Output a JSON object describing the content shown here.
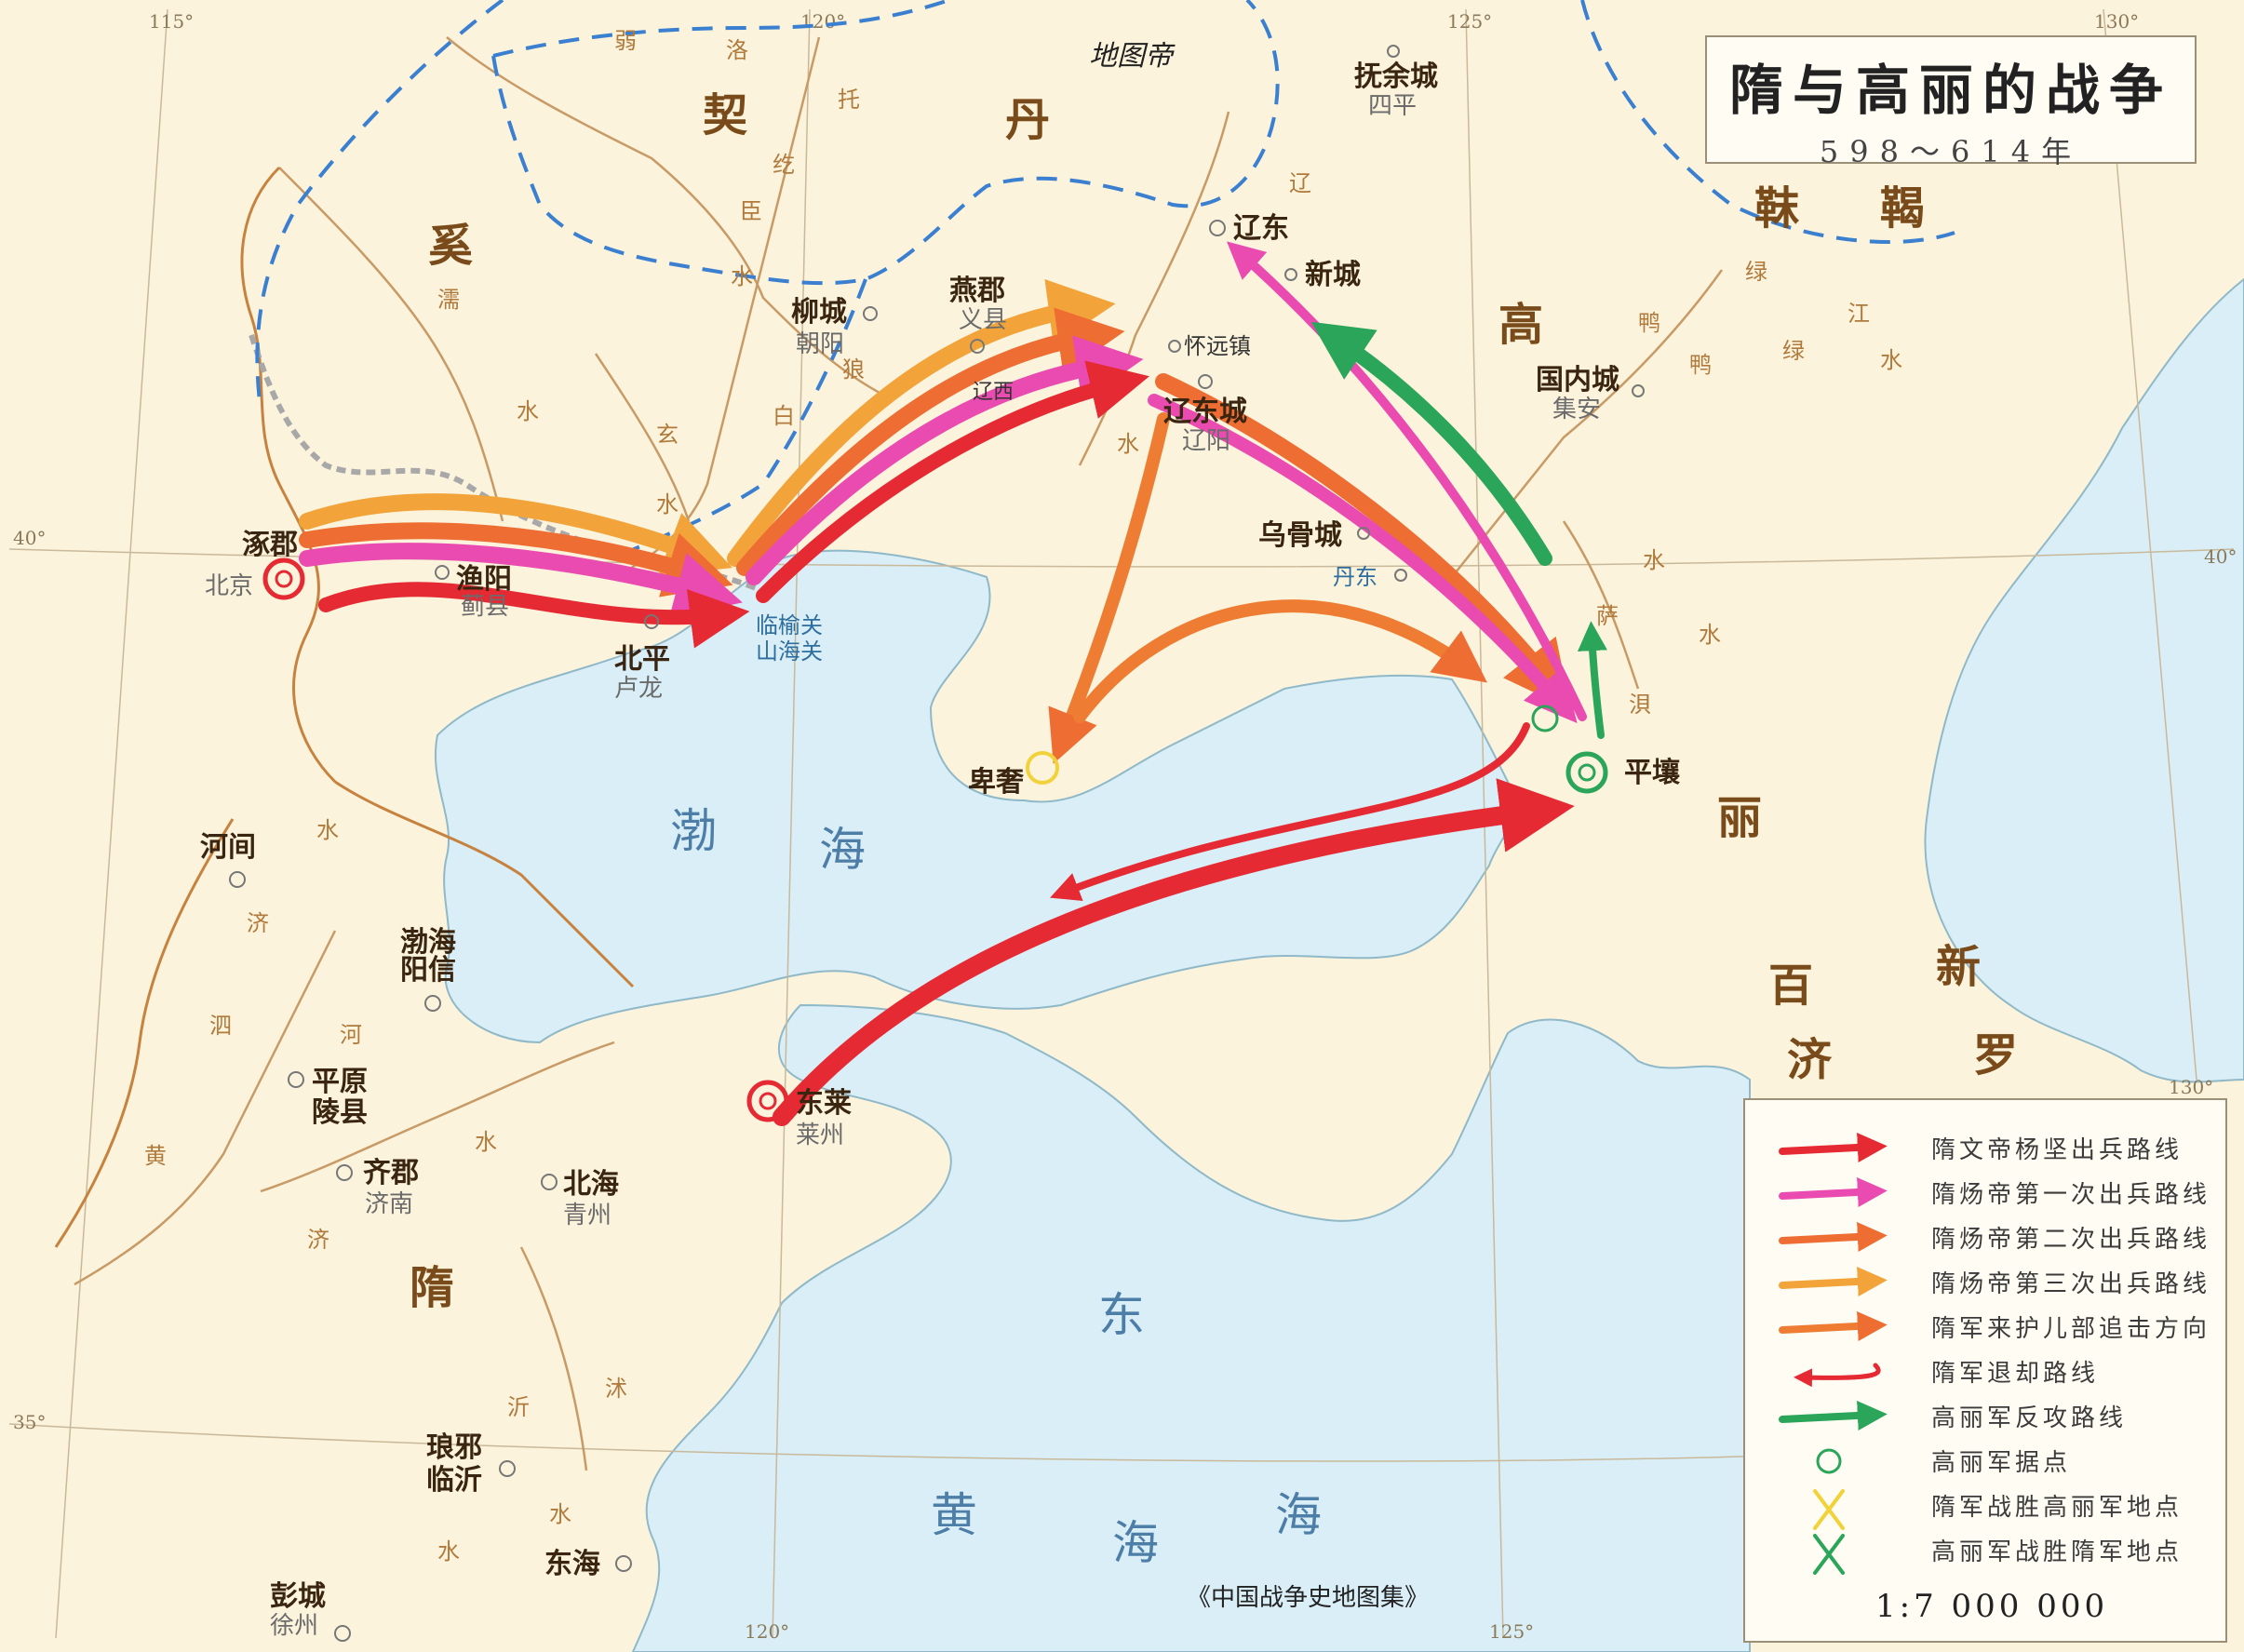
{
  "title": {
    "main": "隋与高丽的战争",
    "sub": "598～614年"
  },
  "watermark": "地图帝",
  "source_note": "《中国战争史地图集》",
  "regions": {
    "khitan": [
      "契",
      "丹"
    ],
    "xi": "奚",
    "mohe": [
      "靺",
      "鞨"
    ],
    "goguryeo": [
      "高",
      "丽"
    ],
    "baekje": [
      "百",
      "济"
    ],
    "silla": [
      "新",
      "罗"
    ],
    "sui": "隋"
  },
  "seas": {
    "bohai": [
      "渤",
      "海"
    ],
    "east": "东",
    "yellow": [
      "黄",
      "海",
      "海"
    ]
  },
  "cities": {
    "zhuojun": {
      "name": "涿郡",
      "modern": "北京"
    },
    "yuyang": {
      "name": "渔阳",
      "modern": "蓟县"
    },
    "beiping": {
      "name": "北平",
      "modern": "卢龙"
    },
    "linyu": {
      "name": "临榆关",
      "modern": "山海关"
    },
    "liucheng": {
      "name": "柳城",
      "modern": "朝阳"
    },
    "yanjun": {
      "name": "燕郡",
      "modern": "义县"
    },
    "liaoxi": {
      "name": "辽西"
    },
    "huaiyuan": {
      "name": "怀远镇"
    },
    "liaodong_city": {
      "name": "辽东城",
      "modern": "辽阳"
    },
    "liaodong": {
      "name": "辽东"
    },
    "xincheng": {
      "name": "新城"
    },
    "fuyu": {
      "name": "抚余城",
      "modern": "四平"
    },
    "guonei": {
      "name": "国内城",
      "modern": "集安"
    },
    "wugu": {
      "name": "乌骨城",
      "modern": "丹东"
    },
    "dandong": {
      "name": "丹东"
    },
    "beishe": {
      "name": "卑奢"
    },
    "pyongyang": {
      "name": "平壤"
    },
    "hejian": {
      "name": "河间"
    },
    "bohai_jun": {
      "name": "渤海",
      "modern": "阳信"
    },
    "pingyuan": {
      "name": "平原",
      "modern": "陵县"
    },
    "qijun": {
      "name": "齐郡",
      "modern": "济南"
    },
    "beihai": {
      "name": "北海",
      "modern": "青州"
    },
    "donglai": {
      "name": "东莱",
      "modern": "莱州"
    },
    "langya": {
      "name": "琅邪",
      "modern": "临沂"
    },
    "donghai": {
      "name": "东海"
    },
    "pengcheng": {
      "name": "彭城",
      "modern": "徐州"
    }
  },
  "rivers": {
    "luo": [
      "洛"
    ],
    "tuo": [
      "托",
      "纥",
      "臣",
      "水"
    ],
    "ru": [
      "濡",
      "水"
    ],
    "xuan": [
      "玄",
      "水"
    ],
    "bai": [
      "白",
      "狼",
      "水"
    ],
    "liao": [
      "辽",
      "水"
    ],
    "yalu": [
      "鸭",
      "绿",
      "江",
      "水"
    ],
    "he": [
      "河"
    ],
    "ji": [
      "济"
    ],
    "yi": [
      "沂",
      "沭",
      "水"
    ],
    "huang": [
      "黄"
    ],
    "misc": [
      "水",
      "水",
      "浿",
      "弱",
      "萨",
      "泗"
    ]
  },
  "degrees": {
    "lon": [
      "115°",
      "120°",
      "125°",
      "130°"
    ],
    "lat": [
      "40°",
      "35°"
    ],
    "lon_bottom": [
      "120°",
      "125°"
    ]
  },
  "legend": {
    "items": [
      {
        "label": "隋文帝杨坚出兵路线",
        "color": "#e52a33"
      },
      {
        "label": "隋炀帝第一次出兵路线",
        "color": "#e94bb0"
      },
      {
        "label": "隋炀帝第二次出兵路线",
        "color": "#ee6d33"
      },
      {
        "label": "隋炀帝第三次出兵路线",
        "color": "#f2a43a"
      },
      {
        "label": "隋军来护儿部追击方向",
        "color": "#ee7d33"
      },
      {
        "label": "隋军退却路线",
        "color": "#e52a33"
      },
      {
        "label": "高丽军反攻路线",
        "color": "#2aa55a"
      },
      {
        "label": "高丽军据点",
        "color": "#2aa55a"
      },
      {
        "label": "隋军战胜高丽军地点",
        "color": "#f2d23a"
      },
      {
        "label": "高丽军战胜隋军地点",
        "color": "#2aa55a"
      }
    ],
    "scale": "1:7 000 000"
  }
}
